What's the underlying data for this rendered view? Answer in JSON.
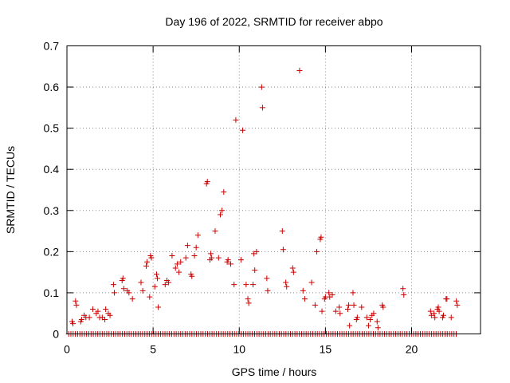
{
  "chart_data": {
    "type": "scatter",
    "title": "Day 196 of 2022, SRMTID for receiver abpo",
    "xlabel": "GPS time / hours",
    "ylabel": "SRMTID / TECUs",
    "xlim": [
      0,
      24
    ],
    "ylim": [
      0,
      0.7
    ],
    "grid": true,
    "marker": "+",
    "color": "#cc0000",
    "xticks": [
      0,
      5,
      10,
      15,
      20
    ],
    "xtick_labels": [
      "0",
      "5",
      "10",
      "15",
      "20"
    ],
    "yticks": [
      0,
      0.1,
      0.2,
      0.3,
      0.4,
      0.5,
      0.6,
      0.7
    ],
    "ytick_labels": [
      "0",
      "0.1",
      "0.2",
      "0.3",
      "0.4",
      "0.5",
      "0.6",
      "0.7"
    ],
    "zero_series": {
      "x_start": 0.1,
      "x_end": 22.7,
      "x_step": 0.13,
      "y": 0
    },
    "series": [
      {
        "name": "SRMTID",
        "points": [
          [
            0.3,
            0.03
          ],
          [
            0.35,
            0.025
          ],
          [
            0.5,
            0.08
          ],
          [
            0.55,
            0.07
          ],
          [
            0.8,
            0.03
          ],
          [
            0.85,
            0.035
          ],
          [
            1.0,
            0.045
          ],
          [
            1.1,
            0.04
          ],
          [
            1.3,
            0.04
          ],
          [
            1.5,
            0.06
          ],
          [
            1.7,
            0.05
          ],
          [
            1.8,
            0.055
          ],
          [
            1.9,
            0.04
          ],
          [
            2.05,
            0.04
          ],
          [
            2.2,
            0.035
          ],
          [
            2.25,
            0.06
          ],
          [
            2.4,
            0.05
          ],
          [
            2.5,
            0.045
          ],
          [
            2.7,
            0.12
          ],
          [
            2.75,
            0.1
          ],
          [
            3.2,
            0.13
          ],
          [
            3.25,
            0.135
          ],
          [
            3.3,
            0.11
          ],
          [
            3.5,
            0.105
          ],
          [
            3.6,
            0.1
          ],
          [
            3.8,
            0.085
          ],
          [
            4.3,
            0.125
          ],
          [
            4.4,
            0.105
          ],
          [
            4.6,
            0.165
          ],
          [
            4.65,
            0.175
          ],
          [
            4.8,
            0.09
          ],
          [
            4.85,
            0.19
          ],
          [
            4.9,
            0.185
          ],
          [
            5.1,
            0.115
          ],
          [
            5.2,
            0.145
          ],
          [
            5.25,
            0.135
          ],
          [
            5.3,
            0.065
          ],
          [
            5.7,
            0.12
          ],
          [
            5.8,
            0.13
          ],
          [
            5.9,
            0.125
          ],
          [
            6.1,
            0.19
          ],
          [
            6.3,
            0.16
          ],
          [
            6.4,
            0.17
          ],
          [
            6.5,
            0.15
          ],
          [
            6.6,
            0.175
          ],
          [
            6.9,
            0.185
          ],
          [
            7.0,
            0.215
          ],
          [
            7.2,
            0.145
          ],
          [
            7.25,
            0.14
          ],
          [
            7.4,
            0.19
          ],
          [
            7.5,
            0.21
          ],
          [
            7.6,
            0.24
          ],
          [
            8.1,
            0.365
          ],
          [
            8.15,
            0.37
          ],
          [
            8.3,
            0.18
          ],
          [
            8.35,
            0.195
          ],
          [
            8.4,
            0.185
          ],
          [
            8.6,
            0.25
          ],
          [
            8.8,
            0.185
          ],
          [
            8.9,
            0.29
          ],
          [
            9.0,
            0.3
          ],
          [
            9.1,
            0.345
          ],
          [
            9.3,
            0.175
          ],
          [
            9.35,
            0.18
          ],
          [
            9.5,
            0.17
          ],
          [
            9.7,
            0.12
          ],
          [
            9.8,
            0.52
          ],
          [
            10.1,
            0.18
          ],
          [
            10.2,
            0.495
          ],
          [
            10.4,
            0.12
          ],
          [
            10.5,
            0.085
          ],
          [
            10.55,
            0.075
          ],
          [
            10.8,
            0.12
          ],
          [
            10.85,
            0.195
          ],
          [
            10.9,
            0.155
          ],
          [
            11.0,
            0.2
          ],
          [
            11.3,
            0.6
          ],
          [
            11.35,
            0.55
          ],
          [
            11.6,
            0.135
          ],
          [
            11.65,
            0.105
          ],
          [
            12.5,
            0.25
          ],
          [
            12.55,
            0.205
          ],
          [
            12.7,
            0.125
          ],
          [
            12.75,
            0.115
          ],
          [
            13.1,
            0.16
          ],
          [
            13.15,
            0.15
          ],
          [
            13.5,
            0.64
          ],
          [
            13.7,
            0.105
          ],
          [
            13.8,
            0.085
          ],
          [
            14.2,
            0.125
          ],
          [
            14.4,
            0.07
          ],
          [
            14.5,
            0.2
          ],
          [
            14.7,
            0.23
          ],
          [
            14.75,
            0.235
          ],
          [
            14.8,
            0.055
          ],
          [
            14.95,
            0.085
          ],
          [
            15.0,
            0.09
          ],
          [
            15.2,
            0.1
          ],
          [
            15.25,
            0.09
          ],
          [
            15.4,
            0.095
          ],
          [
            15.6,
            0.055
          ],
          [
            15.8,
            0.065
          ],
          [
            15.85,
            0.05
          ],
          [
            16.3,
            0.06
          ],
          [
            16.35,
            0.07
          ],
          [
            16.4,
            0.02
          ],
          [
            16.6,
            0.1
          ],
          [
            16.65,
            0.07
          ],
          [
            16.8,
            0.035
          ],
          [
            16.85,
            0.04
          ],
          [
            17.1,
            0.065
          ],
          [
            17.4,
            0.04
          ],
          [
            17.5,
            0.02
          ],
          [
            17.6,
            0.035
          ],
          [
            17.7,
            0.045
          ],
          [
            17.8,
            0.05
          ],
          [
            18.0,
            0.03
          ],
          [
            18.05,
            0.015
          ],
          [
            18.3,
            0.07
          ],
          [
            18.35,
            0.065
          ],
          [
            19.5,
            0.11
          ],
          [
            19.55,
            0.095
          ],
          [
            21.1,
            0.055
          ],
          [
            21.15,
            0.045
          ],
          [
            21.3,
            0.05
          ],
          [
            21.35,
            0.04
          ],
          [
            21.5,
            0.06
          ],
          [
            21.55,
            0.065
          ],
          [
            21.6,
            0.055
          ],
          [
            21.8,
            0.04
          ],
          [
            21.85,
            0.045
          ],
          [
            22.0,
            0.085
          ],
          [
            22.05,
            0.085
          ],
          [
            22.3,
            0.04
          ],
          [
            22.6,
            0.08
          ],
          [
            22.65,
            0.07
          ]
        ]
      }
    ]
  }
}
